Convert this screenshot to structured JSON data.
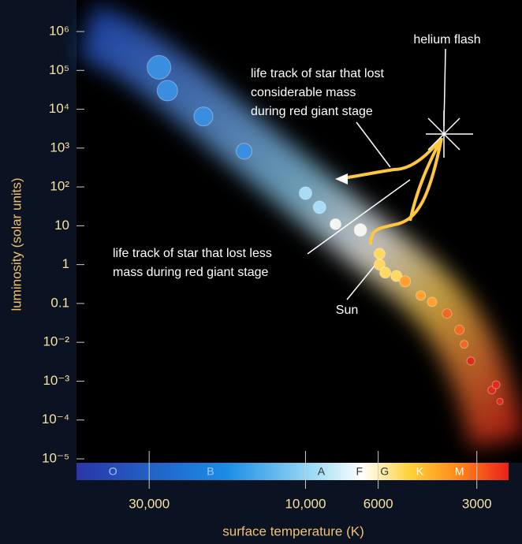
{
  "chart_data": {
    "type": "scatter",
    "ylabel": "luminosity (solar units)",
    "xlabel": "surface temperature (K)",
    "log_x": true,
    "log_y": true,
    "x_reversed": true,
    "xlim": [
      50000,
      2400
    ],
    "ylim": [
      1e-05,
      1000000
    ],
    "xticks": [
      {
        "value": 30000,
        "label": "30,000"
      },
      {
        "value": 10000,
        "label": "10,000"
      },
      6000,
      3000
    ],
    "yticks": [
      {
        "value": 1000000,
        "label": "10⁶"
      },
      {
        "value": 100000,
        "label": "10⁵"
      },
      {
        "value": 10000,
        "label": "10⁴"
      },
      {
        "value": 1000,
        "label": "10³"
      },
      {
        "value": 100,
        "label": "10²"
      },
      10,
      1,
      0.1,
      {
        "value": 0.01,
        "label": "10⁻²"
      },
      {
        "value": 0.001,
        "label": "10⁻³"
      },
      {
        "value": 0.0001,
        "label": "10⁻⁴"
      },
      {
        "value": 1e-05,
        "label": "10⁻⁵"
      }
    ],
    "spectral_classes": {
      "labels": [
        "O",
        "B",
        "A",
        "F",
        "G",
        "K",
        "M"
      ],
      "x": [
        38700,
        19500,
        8950,
        6850,
        5740,
        4480,
        3390
      ]
    },
    "stars": {
      "x": [
        28000,
        26400,
        20500,
        15400,
        10000,
        9060,
        8100,
        6800,
        5940,
        5940,
        5710,
        5280,
        4970,
        4450,
        4110,
        3700,
        3390,
        3280,
        3130,
        2700,
        2620,
        2550
      ],
      "y": [
        120000,
        30000,
        6500,
        830,
        69,
        30,
        11,
        7.8,
        1.9,
        1,
        0.62,
        0.51,
        0.37,
        0.16,
        0.11,
        0.055,
        0.021,
        0.0089,
        0.0033,
        0.00059,
        0.00081,
        0.0003
      ],
      "sizes": [
        15,
        13,
        12,
        10,
        8,
        8,
        7,
        8,
        7,
        7,
        7,
        7,
        7,
        6,
        6,
        6,
        6,
        5,
        5,
        5,
        5,
        4
      ]
    },
    "annotations": {
      "helium_flash": "helium flash",
      "considerable": [
        "life track of star that lost",
        "considerable mass",
        "during red giant stage"
      ],
      "less": [
        "life track of star that lost less",
        "mass during red giant stage"
      ],
      "sun": "Sun"
    }
  }
}
